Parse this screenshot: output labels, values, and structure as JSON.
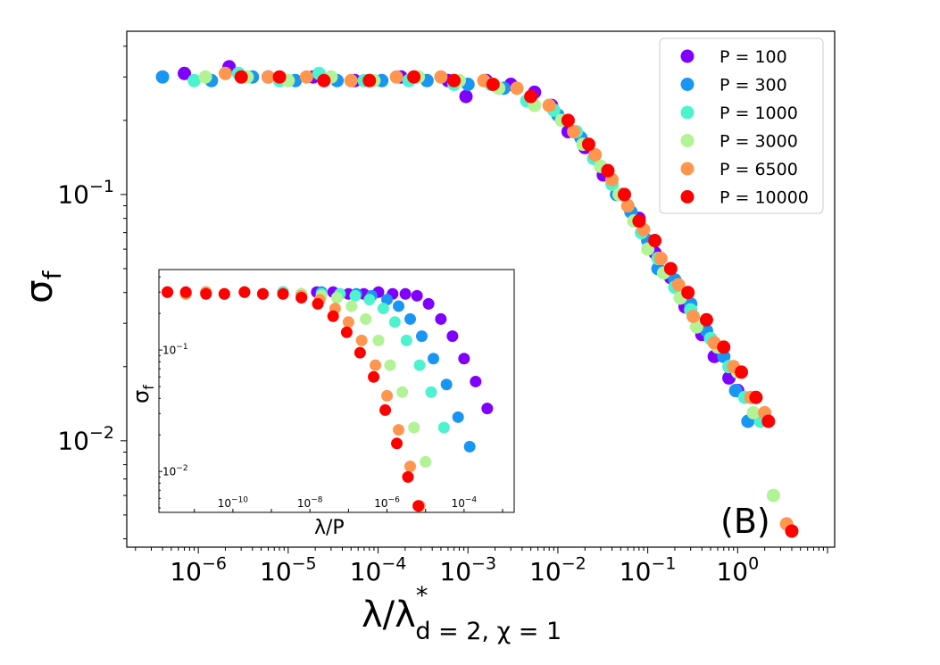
{
  "chart_data": [
    {
      "type": "scatter",
      "panel": "main",
      "scale": "log-log",
      "xlabel_main": "λ/λ",
      "xlabel_sup": "*",
      "xlabel_sub": "d = 2, χ = 1",
      "ylabel_main": "σ",
      "ylabel_sub": "f",
      "xlim": [
        1.6e-07,
        12
      ],
      "ylim": [
        0.0037,
        0.46
      ],
      "xticks": [
        {
          "value": 1e-06,
          "base": "10",
          "exp": "−6"
        },
        {
          "value": 1e-05,
          "base": "10",
          "exp": "−5"
        },
        {
          "value": 0.0001,
          "base": "10",
          "exp": "−4"
        },
        {
          "value": 0.001,
          "base": "10",
          "exp": "−3"
        },
        {
          "value": 0.01,
          "base": "10",
          "exp": "−2"
        },
        {
          "value": 0.1,
          "base": "10",
          "exp": "−1"
        },
        {
          "value": 1,
          "base": "10",
          "exp": "0"
        }
      ],
      "yticks": [
        {
          "value": 0.1,
          "base": "10",
          "exp": "−1"
        },
        {
          "value": 0.01,
          "base": "10",
          "exp": "−2"
        }
      ],
      "panel_label": "(B)",
      "legend_position": "top-right",
      "series": [
        {
          "name": "P = 100",
          "color": "#8000ff",
          "x": [
            7e-07,
            2.2e-06,
            6e-06,
            1.9e-05,
            5.5e-05,
            0.00018,
            0.0006,
            0.00095,
            0.0016,
            0.003,
            0.0055,
            0.0085,
            0.013,
            0.02,
            0.032,
            0.05,
            0.08,
            0.12,
            0.18,
            0.26,
            0.4,
            0.55,
            0.8,
            1.0
          ],
          "y": [
            0.31,
            0.33,
            0.3,
            0.3,
            0.29,
            0.3,
            0.29,
            0.25,
            0.29,
            0.28,
            0.26,
            0.23,
            0.18,
            0.155,
            0.12,
            0.1,
            0.08,
            0.058,
            0.046,
            0.035,
            0.027,
            0.022,
            0.018,
            0.016
          ]
        },
        {
          "name": "P = 300",
          "color": "#1996f3",
          "x": [
            4e-07,
            1.4e-06,
            4e-06,
            1.2e-05,
            3.5e-05,
            0.00011,
            0.00035,
            0.001,
            0.0025,
            0.005,
            0.01,
            0.018,
            0.03,
            0.045,
            0.065,
            0.1,
            0.13,
            0.2,
            0.3,
            0.45,
            0.7,
            0.95,
            1.3
          ],
          "y": [
            0.3,
            0.29,
            0.3,
            0.29,
            0.29,
            0.29,
            0.29,
            0.28,
            0.27,
            0.24,
            0.21,
            0.17,
            0.13,
            0.1,
            0.085,
            0.065,
            0.05,
            0.045,
            0.036,
            0.028,
            0.022,
            0.016,
            0.012
          ]
        },
        {
          "name": "P = 1000",
          "color": "#4df3ce",
          "x": [
            9e-07,
            2.8e-06,
            8e-06,
            2.2e-05,
            7e-05,
            0.00022,
            0.0007,
            0.0018,
            0.0045,
            0.009,
            0.016,
            0.025,
            0.04,
            0.06,
            0.085,
            0.13,
            0.2,
            0.3,
            0.5,
            0.8,
            1.2,
            1.8
          ],
          "y": [
            0.29,
            0.31,
            0.29,
            0.31,
            0.29,
            0.29,
            0.28,
            0.28,
            0.24,
            0.22,
            0.18,
            0.14,
            0.11,
            0.09,
            0.07,
            0.055,
            0.042,
            0.034,
            0.026,
            0.02,
            0.015,
            0.012
          ]
        },
        {
          "name": "P = 3000",
          "color": "#b2f396",
          "x": [
            1.2e-06,
            3.5e-06,
            1e-05,
            3e-05,
            9e-05,
            0.00028,
            0.0008,
            0.0022,
            0.0055,
            0.011,
            0.019,
            0.03,
            0.048,
            0.07,
            0.1,
            0.15,
            0.23,
            0.35,
            0.6,
            1.0,
            1.5,
            2.5
          ],
          "y": [
            0.3,
            0.3,
            0.29,
            0.3,
            0.29,
            0.3,
            0.29,
            0.27,
            0.23,
            0.2,
            0.16,
            0.13,
            0.1,
            0.078,
            0.06,
            0.048,
            0.038,
            0.029,
            0.024,
            0.019,
            0.013,
            0.006
          ]
        },
        {
          "name": "P = 6500",
          "color": "#ff964f",
          "x": [
            2e-06,
            6e-06,
            1.6e-05,
            5e-05,
            0.00016,
            0.0005,
            0.0015,
            0.0035,
            0.008,
            0.015,
            0.026,
            0.04,
            0.06,
            0.09,
            0.14,
            0.22,
            0.32,
            0.55,
            0.9,
            1.4,
            2.0,
            3.5
          ],
          "y": [
            0.31,
            0.3,
            0.3,
            0.29,
            0.3,
            0.3,
            0.29,
            0.27,
            0.23,
            0.18,
            0.145,
            0.115,
            0.09,
            0.072,
            0.055,
            0.043,
            0.032,
            0.025,
            0.02,
            0.015,
            0.013,
            0.0046
          ]
        },
        {
          "name": "P = 10000",
          "color": "#ff0000",
          "x": [
            3e-06,
            8e-06,
            2.5e-05,
            8e-05,
            0.00025,
            0.0007,
            0.0019,
            0.005,
            0.013,
            0.022,
            0.036,
            0.055,
            0.08,
            0.12,
            0.18,
            0.28,
            0.45,
            0.7,
            1.1,
            1.6,
            2.2,
            4.0
          ],
          "y": [
            0.3,
            0.3,
            0.29,
            0.29,
            0.3,
            0.29,
            0.28,
            0.25,
            0.2,
            0.16,
            0.125,
            0.1,
            0.078,
            0.065,
            0.05,
            0.04,
            0.031,
            0.024,
            0.019,
            0.015,
            0.012,
            0.0043
          ]
        }
      ]
    },
    {
      "type": "scatter",
      "panel": "inset",
      "scale": "log-log",
      "xlabel": "λ/P",
      "ylabel_main": "σ",
      "ylabel_sub": "f",
      "xlim": [
        1.2e-12,
        0.002
      ],
      "ylim": [
        0.0046,
        0.46
      ],
      "xticks": [
        {
          "value": 1e-10,
          "base": "10",
          "exp": "−10"
        },
        {
          "value": 1e-08,
          "base": "10",
          "exp": "−8"
        },
        {
          "value": 1e-06,
          "base": "10",
          "exp": "−6"
        },
        {
          "value": 0.0001,
          "base": "10",
          "exp": "−4"
        }
      ],
      "yticks": [
        {
          "value": 0.1,
          "base": "10",
          "exp": "−1"
        },
        {
          "value": 0.01,
          "base": "10",
          "exp": "−2"
        }
      ],
      "series": [
        {
          "name": "P = 100",
          "color": "#8000ff",
          "x": [
            2e-12,
            6e-12,
            2e-11,
            6e-11,
            2e-10,
            6e-10,
            2e-09,
            6e-09,
            1.5e-08,
            4e-08,
            1e-07,
            2.5e-07,
            6e-07,
            1.4e-06,
            3e-06,
            6e-06,
            1.2e-05,
            2.5e-05,
            5e-05,
            0.0001,
            0.0002,
            0.0004
          ],
          "y": [
            0.3,
            0.29,
            0.3,
            0.29,
            0.3,
            0.29,
            0.3,
            0.29,
            0.3,
            0.3,
            0.29,
            0.29,
            0.3,
            0.29,
            0.29,
            0.28,
            0.24,
            0.18,
            0.13,
            0.085,
            0.055,
            0.033
          ]
        },
        {
          "name": "P = 300",
          "color": "#1996f3",
          "x": [
            2e-12,
            6e-12,
            2e-11,
            6e-11,
            2e-10,
            6e-10,
            2e-09,
            6e-09,
            2e-08,
            6e-08,
            1.6e-07,
            4e-07,
            1e-06,
            2e-06,
            4e-06,
            8e-06,
            1.6e-05,
            3.5e-05,
            7e-05,
            0.00014
          ],
          "y": [
            0.3,
            0.29,
            0.3,
            0.29,
            0.3,
            0.29,
            0.3,
            0.29,
            0.3,
            0.29,
            0.29,
            0.28,
            0.26,
            0.23,
            0.18,
            0.13,
            0.085,
            0.052,
            0.028,
            0.016
          ]
        },
        {
          "name": "P = 1000",
          "color": "#4df3ce",
          "x": [
            2e-12,
            6e-12,
            2e-11,
            6e-11,
            2e-10,
            6e-10,
            2e-09,
            6e-09,
            2e-08,
            6e-08,
            1.5e-07,
            3.5e-07,
            8e-07,
            1.6e-06,
            3.2e-06,
            7e-06,
            1.4e-05,
            3e-05
          ],
          "y": [
            0.3,
            0.29,
            0.3,
            0.29,
            0.3,
            0.29,
            0.3,
            0.29,
            0.29,
            0.29,
            0.28,
            0.26,
            0.22,
            0.17,
            0.12,
            0.075,
            0.045,
            0.023
          ]
        },
        {
          "name": "P = 3000",
          "color": "#b2f396",
          "x": [
            2e-12,
            6e-12,
            2e-11,
            6e-11,
            2e-10,
            6e-10,
            2e-09,
            6e-09,
            2e-08,
            5e-08,
            1.2e-07,
            2.8e-07,
            6e-07,
            1.2e-06,
            2.5e-06,
            5e-06,
            1e-05
          ],
          "y": [
            0.3,
            0.29,
            0.3,
            0.29,
            0.3,
            0.29,
            0.29,
            0.29,
            0.28,
            0.27,
            0.23,
            0.18,
            0.12,
            0.075,
            0.045,
            0.023,
            0.012
          ]
        },
        {
          "name": "P = 6500",
          "color": "#ff964f",
          "x": [
            2e-12,
            6e-12,
            2e-11,
            6e-11,
            2e-10,
            6e-10,
            2e-09,
            6e-09,
            1.8e-08,
            4.5e-08,
            1e-07,
            2.2e-07,
            5e-07,
            1e-06,
            2e-06,
            4e-06,
            7e-06
          ],
          "y": [
            0.3,
            0.29,
            0.3,
            0.29,
            0.3,
            0.29,
            0.29,
            0.28,
            0.26,
            0.22,
            0.17,
            0.12,
            0.075,
            0.042,
            0.022,
            0.011,
            0.0052
          ]
        },
        {
          "name": "P = 10000",
          "color": "#ff0000",
          "x": [
            2e-12,
            6e-12,
            2e-11,
            6e-11,
            2e-10,
            6e-10,
            2e-09,
            6e-09,
            1.6e-08,
            4e-08,
            9e-08,
            2e-07,
            4.5e-07,
            9e-07,
            1.8e-06,
            3.5e-06,
            6.5e-06
          ],
          "y": [
            0.3,
            0.3,
            0.29,
            0.29,
            0.3,
            0.29,
            0.29,
            0.27,
            0.24,
            0.19,
            0.14,
            0.095,
            0.06,
            0.032,
            0.017,
            0.009,
            0.0052
          ]
        }
      ]
    }
  ]
}
